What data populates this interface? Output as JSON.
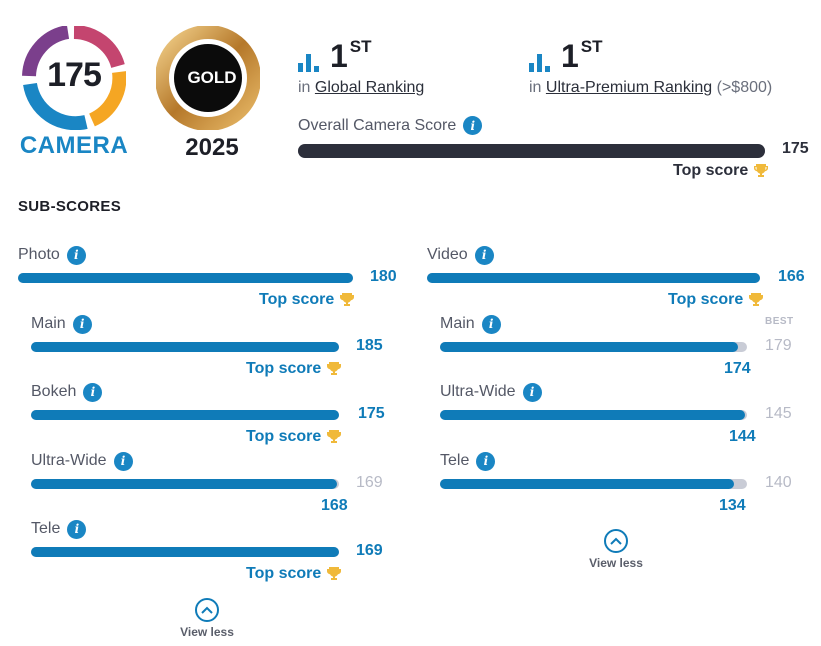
{
  "camera_badge": {
    "score": "175",
    "label": "CAMERA"
  },
  "gold_badge": {
    "label": "GOLD",
    "year": "2025"
  },
  "rankings": [
    {
      "number": "1",
      "suffix": "ST",
      "prefix": "in",
      "link": "Global Ranking",
      "note": ""
    },
    {
      "number": "1",
      "suffix": "ST",
      "prefix": "in",
      "link": "Ultra-Premium Ranking",
      "note": "(>$800)"
    }
  ],
  "overall": {
    "label": "Overall Camera Score",
    "value": "175",
    "fraction": 1.0,
    "top_label": "Top score"
  },
  "subscores_title": "SUB-SCORES",
  "photo": {
    "main": {
      "label": "Photo",
      "value": "180",
      "fraction": 1.0,
      "top_label": "Top score"
    },
    "items": [
      {
        "label": "Main",
        "value": "185",
        "fraction": 1.0,
        "top_label": "Top score"
      },
      {
        "label": "Bokeh",
        "value": "175",
        "fraction": 1.0,
        "top_label": "Top score"
      },
      {
        "label": "Ultra-Wide",
        "best": "169",
        "achieved": "168",
        "fraction": 0.994
      },
      {
        "label": "Tele",
        "value": "169",
        "fraction": 1.0,
        "top_label": "Top score"
      }
    ],
    "view_less": "View less"
  },
  "video": {
    "main": {
      "label": "Video",
      "value": "166",
      "fraction": 1.0,
      "top_label": "Top score"
    },
    "best_label": "BEST",
    "items": [
      {
        "label": "Main",
        "best": "179",
        "achieved": "174",
        "fraction": 0.972
      },
      {
        "label": "Ultra-Wide",
        "best": "145",
        "achieved": "144",
        "fraction": 0.993
      },
      {
        "label": "Tele",
        "best": "140",
        "achieved": "134",
        "fraction": 0.957
      }
    ],
    "view_less": "View less"
  },
  "colors": {
    "accent": "#0f7bb8",
    "dark": "#2c2f3b",
    "track": "#c9ccd6",
    "gold": "#c8963e"
  }
}
